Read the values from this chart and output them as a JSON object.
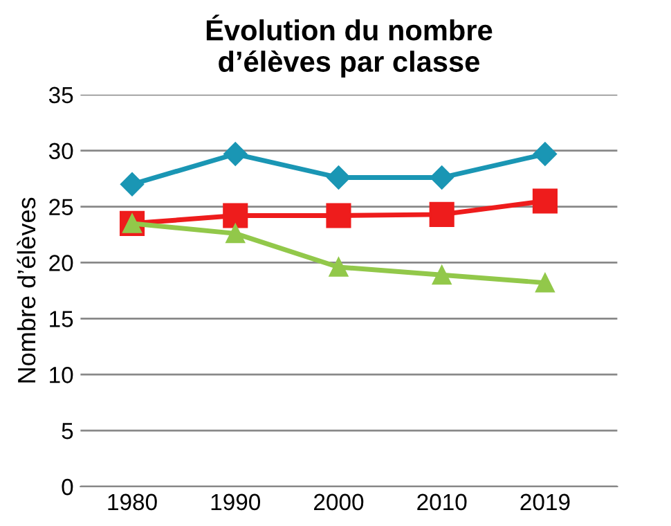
{
  "chart_data": {
    "type": "line",
    "title": "Évolution du nombre\nd’élèves par classe",
    "ylabel": "Nombre d’élèves",
    "categories": [
      "1980",
      "1990",
      "2000",
      "2010",
      "2019"
    ],
    "series": [
      {
        "color": "#1a96b4",
        "marker": "diamond",
        "values": [
          27,
          29.7,
          27.6,
          27.6,
          29.7
        ]
      },
      {
        "color": "#ee1c1c",
        "marker": "square",
        "values": [
          23.5,
          24.2,
          24.2,
          24.3,
          25.5
        ]
      },
      {
        "color": "#92c84a",
        "marker": "triangle",
        "values": [
          23.5,
          22.6,
          19.6,
          18.9,
          18.2
        ]
      }
    ],
    "ylim": [
      0,
      35
    ],
    "yticks": [
      0,
      5,
      10,
      15,
      20,
      25,
      30,
      35
    ],
    "grid": "y",
    "line_style": "solid"
  }
}
